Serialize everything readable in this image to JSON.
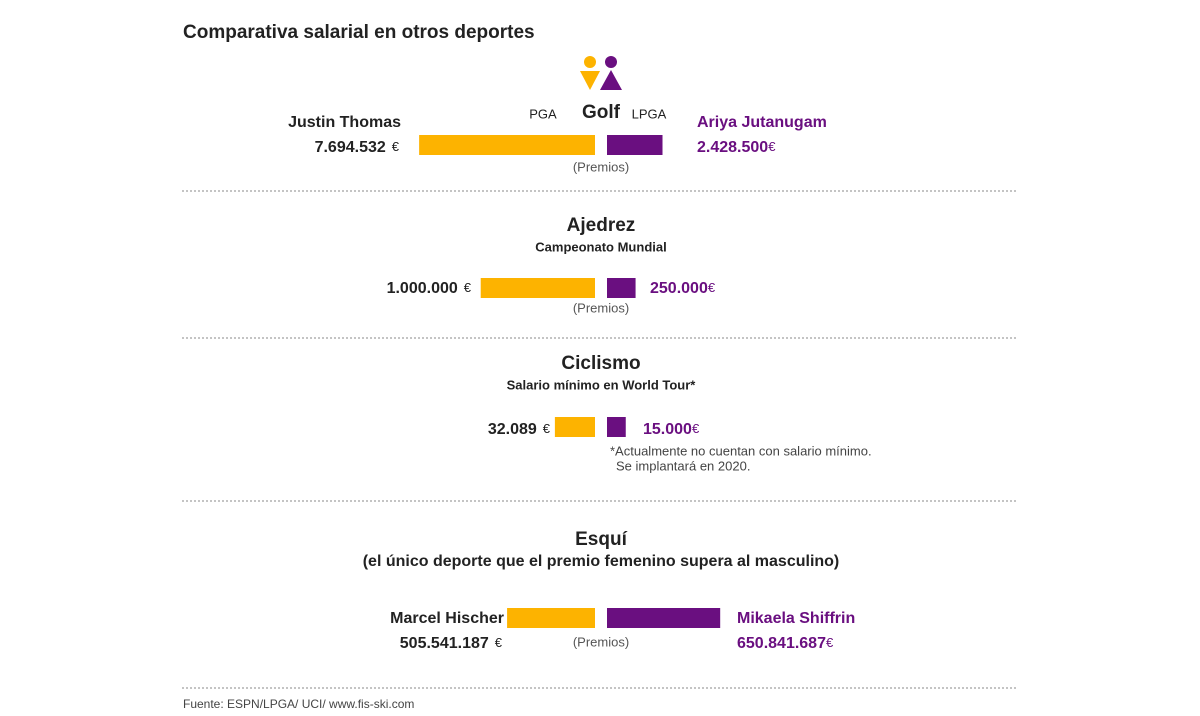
{
  "title": "Comparativa salarial en otros deportes",
  "source": "Fuente: ESPN/LPGA/ UCI/ www.fis-ski.com",
  "chart_data": [
    {
      "type": "bar",
      "title": "Golf",
      "legend": [
        "PGA",
        "LPGA"
      ],
      "caption": "(Premios)",
      "unit": "€",
      "xlim": [
        0,
        8750000
      ],
      "series": [
        {
          "name": "Justin Thomas",
          "color": "#fdb300",
          "values": [
            7694532
          ],
          "value_labels": [
            "7.694.532"
          ]
        },
        {
          "name": "Ariya Jutanugam",
          "color": "#6a0f80",
          "values": [
            2428500
          ],
          "value_labels": [
            "2.428.500"
          ]
        }
      ]
    },
    {
      "type": "bar",
      "title": "Ajedrez",
      "subtitle": "Campeonato Mundial",
      "caption": "(Premios)",
      "unit": "€",
      "xlim": [
        0,
        1750000
      ],
      "series": [
        {
          "color": "#fdb300",
          "values": [
            1000000
          ],
          "value_labels": [
            "1.000.000"
          ]
        },
        {
          "color": "#6a0f80",
          "values": [
            250000
          ],
          "value_labels": [
            "250.000"
          ]
        }
      ]
    },
    {
      "type": "bar",
      "title": "Ciclismo",
      "subtitle": "Salario mínimo en World Tour*",
      "unit": "€",
      "xlim": [
        0,
        160000
      ],
      "notes": [
        "*Actualmente no cuentan con salario mínimo.",
        "Se implantará en 2020."
      ],
      "series": [
        {
          "color": "#fdb300",
          "values": [
            32089
          ],
          "value_labels": [
            "32.089"
          ]
        },
        {
          "color": "#6a0f80",
          "values": [
            15000
          ],
          "value_labels": [
            "15.000"
          ]
        }
      ]
    },
    {
      "type": "bar",
      "title": "Esquí",
      "subtitle": "(el único deporte que el premio femenino supera al masculino)",
      "caption": "(Premios)",
      "unit": "€",
      "xlim": [
        0,
        1150000000
      ],
      "series": [
        {
          "name": "Marcel Hischer",
          "color": "#fdb300",
          "values": [
            505541187
          ],
          "value_labels": [
            "505.541.187"
          ]
        },
        {
          "name": "Mikaela Shiffrin",
          "color": "#6a0f80",
          "values": [
            650841687
          ],
          "value_labels": [
            "650.841.687"
          ]
        }
      ]
    }
  ]
}
